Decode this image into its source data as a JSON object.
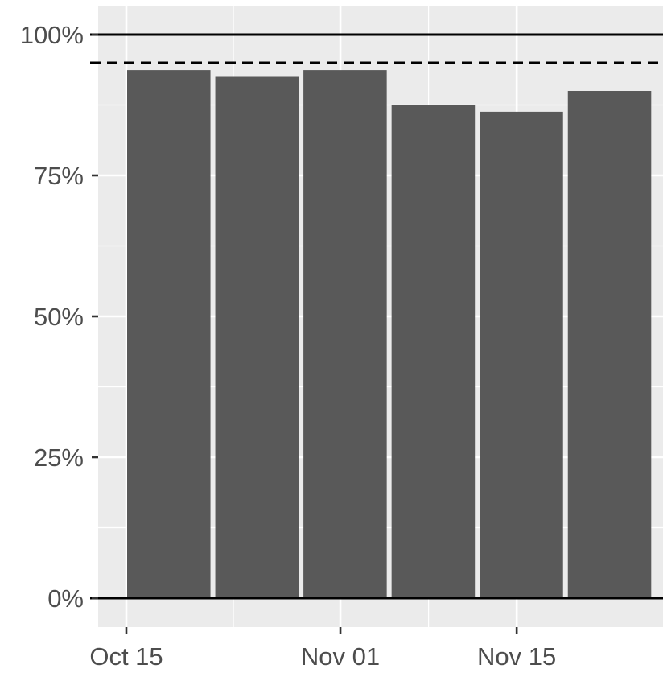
{
  "chart_data": {
    "type": "bar",
    "x_axis": {
      "type": "date",
      "ticks": [
        "Oct 15",
        "Nov 01",
        "Nov 15"
      ],
      "tick_dates": [
        "2021-10-15",
        "2021-11-01",
        "2021-11-15"
      ]
    },
    "y_axis": {
      "ticks": [
        "0%",
        "25%",
        "50%",
        "75%",
        "100%"
      ],
      "tick_values": [
        0,
        0.25,
        0.5,
        0.75,
        1.0
      ],
      "ylim": [
        0,
        1
      ]
    },
    "bars": [
      {
        "start": "2021-10-15",
        "end": "2021-10-22",
        "value": 0.937
      },
      {
        "start": "2021-10-22",
        "end": "2021-10-29",
        "value": 0.925
      },
      {
        "start": "2021-10-29",
        "end": "2021-11-05",
        "value": 0.937
      },
      {
        "start": "2021-11-05",
        "end": "2021-11-12",
        "value": 0.875
      },
      {
        "start": "2021-11-12",
        "end": "2021-11-19",
        "value": 0.863
      },
      {
        "start": "2021-11-19",
        "end": "2021-11-26",
        "value": 0.9
      }
    ],
    "reference_lines": [
      {
        "value": 1.0,
        "style": "solid"
      },
      {
        "value": 0.95,
        "style": "dashed"
      },
      {
        "value": 0.0,
        "style": "solid"
      }
    ],
    "grid": true,
    "bar_color": "#595959",
    "panel_background": "#ebebeb",
    "title": "",
    "xlabel": "",
    "ylabel": ""
  }
}
